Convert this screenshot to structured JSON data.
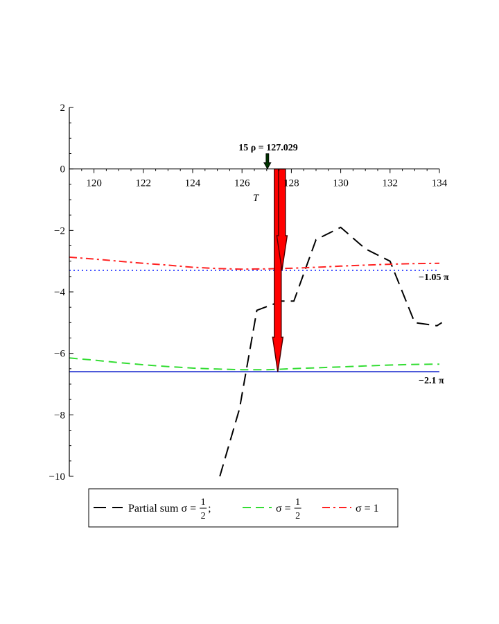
{
  "chart_data": {
    "type": "line",
    "title": "",
    "xlabel": "T",
    "ylabel": "",
    "xlim": [
      119,
      134
    ],
    "ylim": [
      -10,
      2
    ],
    "x_ticks": [
      120,
      122,
      124,
      126,
      128,
      130,
      132,
      134
    ],
    "y_ticks": [
      2,
      0,
      -2,
      -4,
      -6,
      -8,
      -10
    ],
    "x_tick_labels": [
      "120",
      "122",
      "124",
      "126",
      "128",
      "130",
      "132",
      "134"
    ],
    "y_tick_labels": [
      "2",
      "0",
      "−2",
      "−4",
      "−6",
      "−8",
      "−10"
    ],
    "series": [
      {
        "name": "Partial sum σ = 1/2",
        "color": "#000000",
        "dash": "long-dash",
        "x": [
          125.1,
          125.9,
          126.6,
          127.6,
          128.1,
          129.0,
          130.0,
          131.0,
          132.0,
          133.0,
          133.9,
          134.1
        ],
        "y": [
          -10.0,
          -7.8,
          -4.6,
          -4.3,
          -4.3,
          -2.3,
          -1.9,
          -2.6,
          -3.0,
          -5.0,
          -5.1,
          -5.0
        ]
      },
      {
        "name": "σ = 1/2",
        "color": "#33dd33",
        "dash": "dash",
        "x": [
          119,
          120,
          121,
          122,
          123,
          124,
          125,
          126,
          127,
          127.5,
          128,
          129,
          130,
          131,
          132,
          133,
          134
        ],
        "y": [
          -6.15,
          -6.22,
          -6.3,
          -6.37,
          -6.43,
          -6.48,
          -6.51,
          -6.53,
          -6.53,
          -6.52,
          -6.5,
          -6.47,
          -6.44,
          -6.41,
          -6.38,
          -6.36,
          -6.35
        ]
      },
      {
        "name": "σ = 1",
        "color": "#ff2222",
        "dash": "dash-dot",
        "x": [
          119,
          120,
          121,
          122,
          123,
          124,
          125,
          126,
          127,
          127.5,
          128,
          129,
          130,
          131,
          132,
          133,
          134
        ],
        "y": [
          -2.87,
          -2.93,
          -3.0,
          -3.07,
          -3.13,
          -3.2,
          -3.24,
          -3.26,
          -3.25,
          -3.24,
          -3.23,
          -3.2,
          -3.16,
          -3.13,
          -3.1,
          -3.08,
          -3.07
        ]
      }
    ],
    "reference_lines": [
      {
        "y": -3.2987,
        "label": "−1.05 π",
        "color": "#2233ff",
        "style": "dotted"
      },
      {
        "y": -6.5973,
        "label": "−2.1 π",
        "color": "#1122cc",
        "style": "solid"
      }
    ],
    "annotation": {
      "text": "15 ρ = 127.029",
      "x": 127.029,
      "color": "#003300"
    },
    "arrows": [
      {
        "x": 127.45,
        "y_from": 0,
        "y_to": -6.6,
        "color": "#ff0000"
      },
      {
        "x": 127.62,
        "y_from": 0,
        "y_to": -3.3,
        "color": "#ff0000"
      }
    ],
    "legend": {
      "position": "bottom",
      "entries": [
        {
          "label": "Partial sum σ =",
          "frac_num": "1",
          "frac_den": "2",
          "suffix": ";",
          "color": "#000000",
          "dash": "long-dash"
        },
        {
          "label": "σ =",
          "frac_num": "1",
          "frac_den": "2",
          "suffix": "",
          "color": "#33dd33",
          "dash": "dash"
        },
        {
          "label": "σ = 1",
          "frac_num": "",
          "frac_den": "",
          "suffix": "",
          "color": "#ff2222",
          "dash": "dash-dot"
        }
      ]
    }
  }
}
